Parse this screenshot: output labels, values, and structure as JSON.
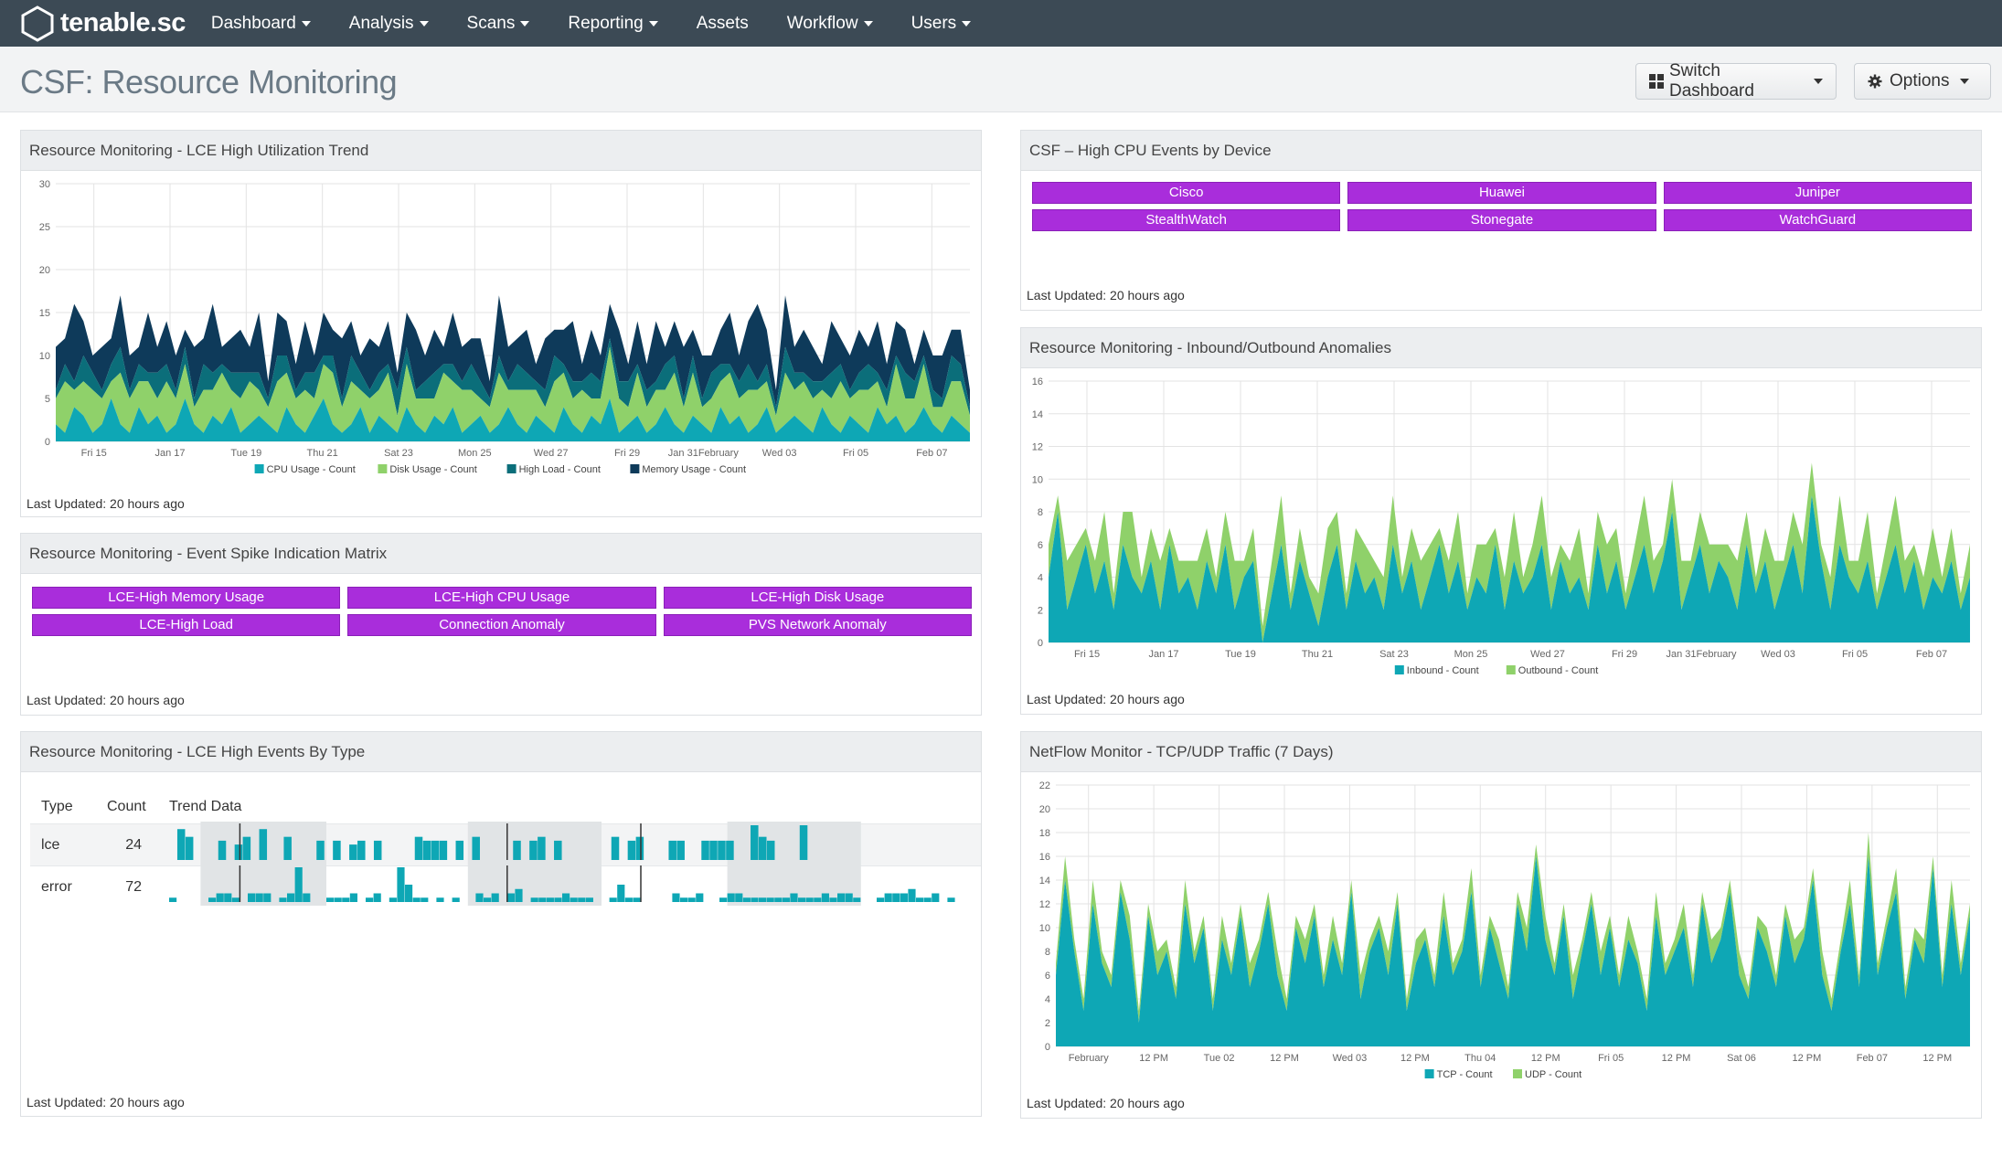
{
  "nav": {
    "logo_text": "tenable.sc",
    "items": [
      {
        "label": "Dashboard",
        "dropdown": true
      },
      {
        "label": "Analysis",
        "dropdown": true
      },
      {
        "label": "Scans",
        "dropdown": true
      },
      {
        "label": "Reporting",
        "dropdown": true
      },
      {
        "label": "Assets",
        "dropdown": false
      },
      {
        "label": "Workflow",
        "dropdown": true
      },
      {
        "label": "Users",
        "dropdown": true
      }
    ]
  },
  "header": {
    "title": "CSF: Resource Monitoring",
    "switch_label": "Switch Dashboard",
    "options_label": "Options"
  },
  "colors": {
    "teal": "#0ea7b5",
    "light_green": "#8fd16a",
    "dark_teal": "#0b6e7a",
    "navy": "#0e3a5a",
    "purple": "#a92ddb",
    "nav_bg": "#3c4a55"
  },
  "panels": {
    "lce_trend": {
      "title": "Resource Monitoring - LCE High Utilization Trend",
      "updated": "Last Updated: 20 hours ago"
    },
    "spike_matrix": {
      "title": "Resource Monitoring - Event Spike Indication Matrix",
      "updated": "Last Updated: 20 hours ago",
      "cells": [
        "LCE-High Memory Usage",
        "LCE-High CPU Usage",
        "LCE-High Disk Usage",
        "LCE-High Load",
        "Connection Anomaly",
        "PVS Network Anomaly"
      ]
    },
    "events_by_type": {
      "title": "Resource Monitoring - LCE High Events By Type",
      "updated": "Last Updated: 20 hours ago",
      "headers": {
        "type": "Type",
        "count": "Count",
        "trend": "Trend Data"
      },
      "rows": [
        {
          "type": "lce",
          "count": "24",
          "trend": [
            0,
            8,
            6,
            0,
            0,
            0,
            5,
            0,
            4,
            6,
            0,
            8,
            0,
            0,
            6,
            0,
            0,
            0,
            5,
            0,
            5,
            0,
            4,
            5,
            0,
            5,
            0,
            0,
            0,
            0,
            6,
            5,
            5,
            5,
            0,
            5,
            0,
            6,
            0,
            0,
            0,
            0,
            5,
            0,
            5,
            6,
            0,
            5,
            0,
            0,
            0,
            0,
            0,
            0,
            6,
            0,
            5,
            6,
            0,
            0,
            0,
            5,
            5,
            0,
            0,
            5,
            5,
            5,
            5,
            0,
            0,
            9,
            6,
            5,
            0,
            0,
            0,
            9,
            0,
            0,
            0,
            0,
            0,
            0,
            0,
            0,
            0,
            0,
            0,
            0,
            0,
            0,
            0,
            0,
            0,
            0
          ]
        },
        {
          "type": "error",
          "count": "72",
          "trend": [
            1,
            0,
            0,
            0,
            0,
            1,
            2,
            2,
            1,
            0,
            2,
            2,
            2,
            0,
            1,
            2,
            8,
            2,
            0,
            0,
            1,
            1,
            1,
            2,
            0,
            1,
            2,
            0,
            1,
            8,
            4,
            1,
            1,
            0,
            1,
            0,
            1,
            0,
            0,
            2,
            1,
            2,
            0,
            2,
            3,
            0,
            1,
            1,
            1,
            1,
            2,
            1,
            1,
            1,
            0,
            0,
            1,
            4,
            1,
            1,
            0,
            0,
            0,
            0,
            2,
            1,
            1,
            2,
            0,
            0,
            1,
            2,
            2,
            1,
            1,
            1,
            1,
            1,
            1,
            2,
            1,
            1,
            1,
            2,
            1,
            2,
            2,
            1,
            0,
            0,
            1,
            2,
            2,
            2,
            3,
            1,
            1,
            2,
            0,
            1
          ]
        }
      ]
    },
    "cpu_by_device": {
      "title": "CSF – High CPU Events by Device",
      "updated": "Last Updated: 20 hours ago",
      "cells": [
        "Cisco",
        "Huawei",
        "Juniper",
        "StealthWatch",
        "Stonegate",
        "WatchGuard"
      ]
    },
    "inout_anomalies": {
      "title": "Resource Monitoring - Inbound/Outbound Anomalies",
      "updated": "Last Updated: 20 hours ago"
    },
    "netflow": {
      "title": "NetFlow Monitor - TCP/UDP Traffic (7 Days)",
      "updated": "Last Updated: 20 hours ago"
    }
  },
  "chart_data": [
    {
      "type": "area",
      "stacked": true,
      "ylim": [
        0,
        30
      ],
      "yticks": [
        0,
        5,
        10,
        15,
        20,
        25,
        30
      ],
      "xtick_labels": [
        "Fri 15",
        "Jan 17",
        "Tue 19",
        "Thu 21",
        "Sat 23",
        "Mon 25",
        "Wed 27",
        "Fri 29",
        "Jan 31February",
        "Wed 03",
        "Fri 05",
        "Feb 07"
      ],
      "series": [
        {
          "name": "CPU Usage - Count",
          "color": "#0ea7b5",
          "values": [
            2,
            1,
            4,
            3,
            1,
            2,
            5,
            2,
            1,
            4,
            2,
            3,
            1,
            2,
            5,
            2,
            1,
            3,
            2,
            4,
            1,
            2,
            3,
            2,
            1,
            4,
            2,
            1,
            3,
            5,
            2,
            1,
            2,
            4,
            1,
            3,
            2,
            1,
            4,
            2,
            1,
            3,
            2,
            4,
            1,
            2,
            3,
            1,
            2,
            4,
            2,
            1,
            3,
            2,
            1,
            4,
            2,
            1,
            3,
            2,
            5,
            1,
            2,
            3,
            1,
            2,
            4,
            2,
            1,
            3,
            2,
            1,
            4,
            2,
            3,
            1,
            2,
            4,
            1,
            2,
            3,
            2,
            1,
            4,
            2,
            1,
            3,
            2,
            1,
            4,
            2,
            3,
            1,
            2,
            4,
            2,
            1,
            3,
            2,
            1
          ]
        },
        {
          "name": "Disk Usage - Count",
          "color": "#8fd16a",
          "values": [
            3,
            6,
            2,
            4,
            5,
            3,
            2,
            6,
            4,
            3,
            5,
            2,
            6,
            3,
            4,
            2,
            5,
            3,
            6,
            2,
            4,
            5,
            3,
            2,
            6,
            4,
            3,
            5,
            2,
            4,
            6,
            3,
            5,
            2,
            4,
            3,
            6,
            2,
            5,
            3,
            4,
            2,
            6,
            3,
            5,
            4,
            2,
            3,
            6,
            2,
            4,
            5,
            3,
            2,
            6,
            4,
            3,
            5,
            2,
            3,
            6,
            4,
            2,
            5,
            3,
            4,
            2,
            6,
            3,
            5,
            2,
            4,
            3,
            6,
            2,
            5,
            4,
            3,
            2,
            6,
            3,
            5,
            4,
            2,
            3,
            6,
            2,
            4,
            5,
            3,
            2,
            6,
            4,
            3,
            5,
            2,
            3,
            4,
            5,
            2
          ]
        },
        {
          "name": "High Load - Count",
          "color": "#0b6e7a",
          "values": [
            1,
            2,
            1,
            3,
            2,
            1,
            2,
            3,
            1,
            2,
            1,
            3,
            2,
            1,
            2,
            1,
            3,
            2,
            1,
            2,
            3,
            1,
            2,
            1,
            3,
            2,
            1,
            2,
            3,
            1,
            2,
            1,
            3,
            2,
            1,
            2,
            1,
            3,
            2,
            1,
            2,
            3,
            1,
            2,
            1,
            3,
            2,
            1,
            2,
            1,
            3,
            2,
            1,
            2,
            3,
            1,
            2,
            1,
            3,
            2,
            1,
            2,
            3,
            1,
            2,
            1,
            3,
            2,
            1,
            2,
            1,
            3,
            2,
            1,
            2,
            3,
            1,
            2,
            1,
            3,
            2,
            1,
            2,
            1,
            3,
            2,
            1,
            2,
            3,
            1,
            2,
            1,
            3,
            2,
            1,
            2,
            1,
            3,
            2,
            1
          ]
        },
        {
          "name": "Memory Usage - Count",
          "color": "#0e3a5a",
          "values": [
            5,
            3,
            9,
            4,
            2,
            5,
            3,
            6,
            4,
            2,
            7,
            3,
            5,
            4,
            2,
            6,
            3,
            8,
            2,
            4,
            5,
            3,
            7,
            2,
            5,
            4,
            3,
            6,
            2,
            5,
            3,
            7,
            4,
            2,
            6,
            3,
            5,
            2,
            4,
            7,
            3,
            5,
            2,
            6,
            4,
            3,
            5,
            2,
            7,
            4,
            3,
            5,
            2,
            6,
            3,
            4,
            7,
            2,
            5,
            3,
            4,
            6,
            2,
            5,
            3,
            7,
            2,
            4,
            6,
            3,
            5,
            2,
            4,
            6,
            3,
            5,
            9,
            4,
            2,
            6,
            3,
            5,
            4,
            2,
            6,
            3,
            4,
            5,
            2,
            6,
            3,
            4,
            5,
            2,
            3,
            4,
            5,
            3,
            4,
            2
          ]
        }
      ]
    },
    {
      "type": "area",
      "stacked": true,
      "ylim": [
        0,
        16
      ],
      "yticks": [
        0,
        2,
        4,
        6,
        8,
        10,
        12,
        14,
        16
      ],
      "xtick_labels": [
        "Fri 15",
        "Jan 17",
        "Tue 19",
        "Thu 21",
        "Sat 23",
        "Mon 25",
        "Wed 27",
        "Fri 29",
        "Jan 31February",
        "Wed 03",
        "Fri 05",
        "Feb 07"
      ],
      "series": [
        {
          "name": "Inbound - Count",
          "color": "#0ea7b5",
          "values": [
            4,
            8,
            2,
            4,
            6,
            3,
            5,
            2,
            6,
            4,
            3,
            5,
            2,
            6,
            3,
            4,
            2,
            5,
            3,
            6,
            2,
            4,
            5,
            0,
            3,
            6,
            2,
            5,
            3,
            1,
            4,
            6,
            2,
            5,
            3,
            4,
            2,
            6,
            3,
            5,
            2,
            4,
            6,
            3,
            5,
            2,
            4,
            3,
            6,
            2,
            5,
            3,
            4,
            6,
            2,
            5,
            3,
            4,
            2,
            6,
            3,
            5,
            2,
            4,
            6,
            3,
            5,
            8,
            2,
            4,
            6,
            3,
            5,
            4,
            2,
            6,
            3,
            5,
            2,
            4,
            6,
            3,
            9,
            5,
            2,
            6,
            4,
            3,
            5,
            2,
            4,
            6,
            3,
            5,
            2,
            4,
            3,
            5,
            2,
            4
          ]
        },
        {
          "name": "Outbound - Count",
          "color": "#8fd16a",
          "values": [
            2,
            1,
            3,
            2,
            1,
            2,
            3,
            1,
            2,
            4,
            1,
            2,
            3,
            1,
            2,
            1,
            3,
            2,
            1,
            2,
            3,
            1,
            2,
            1,
            2,
            3,
            1,
            2,
            1,
            2,
            3,
            2,
            1,
            2,
            3,
            1,
            2,
            3,
            1,
            2,
            3,
            2,
            1,
            2,
            3,
            1,
            2,
            3,
            1,
            2,
            3,
            1,
            2,
            3,
            2,
            1,
            2,
            3,
            1,
            2,
            3,
            2,
            1,
            2,
            3,
            2,
            1,
            2,
            3,
            1,
            2,
            3,
            1,
            2,
            3,
            2,
            1,
            2,
            3,
            1,
            2,
            3,
            2,
            1,
            2,
            3,
            1,
            2,
            3,
            1,
            2,
            3,
            2,
            1,
            2,
            3,
            1,
            2,
            1,
            2
          ]
        }
      ]
    },
    {
      "type": "area",
      "stacked": true,
      "ylim": [
        0,
        22
      ],
      "yticks": [
        0,
        2,
        4,
        6,
        8,
        10,
        12,
        14,
        16,
        18,
        20,
        22
      ],
      "xtick_labels": [
        "February",
        "12 PM",
        "Tue 02",
        "12 PM",
        "Wed 03",
        "12 PM",
        "Thu 04",
        "12 PM",
        "Fri 05",
        "12 PM",
        "Sat 06",
        "12 PM",
        "Feb 07",
        "12 PM"
      ],
      "series": [
        {
          "name": "TCP - Count",
          "color": "#0ea7b5",
          "values": [
            6,
            14,
            8,
            3,
            12,
            7,
            5,
            13,
            9,
            2,
            11,
            6,
            8,
            4,
            12,
            7,
            10,
            3,
            9,
            6,
            11,
            5,
            8,
            12,
            6,
            3,
            10,
            7,
            11,
            5,
            9,
            6,
            13,
            4,
            8,
            10,
            6,
            12,
            3,
            7,
            9,
            5,
            11,
            6,
            8,
            13,
            5,
            10,
            7,
            4,
            12,
            8,
            16,
            9,
            6,
            11,
            4,
            8,
            12,
            6,
            10,
            5,
            9,
            7,
            3,
            11,
            6,
            8,
            10,
            5,
            12,
            7,
            9,
            13,
            6,
            4,
            10,
            8,
            5,
            11,
            7,
            9,
            14,
            6,
            3,
            8,
            12,
            5,
            16,
            6,
            10,
            13,
            4,
            9,
            7,
            15,
            5,
            12,
            6,
            11
          ]
        },
        {
          "name": "UDP - Count",
          "color": "#8fd16a",
          "values": [
            1,
            2,
            1,
            1,
            2,
            1,
            1,
            1,
            2,
            1,
            1,
            2,
            1,
            1,
            2,
            1,
            1,
            1,
            2,
            1,
            1,
            2,
            1,
            1,
            2,
            1,
            1,
            2,
            1,
            1,
            2,
            1,
            1,
            2,
            1,
            1,
            2,
            1,
            1,
            2,
            1,
            1,
            2,
            1,
            1,
            2,
            1,
            1,
            2,
            1,
            1,
            2,
            1,
            2,
            1,
            1,
            2,
            1,
            1,
            2,
            1,
            1,
            2,
            1,
            1,
            2,
            1,
            1,
            2,
            1,
            1,
            2,
            1,
            1,
            2,
            1,
            1,
            2,
            1,
            1,
            2,
            1,
            1,
            2,
            1,
            1,
            2,
            1,
            2,
            1,
            1,
            2,
            1,
            1,
            2,
            1,
            1,
            2,
            1,
            1
          ]
        }
      ]
    }
  ]
}
